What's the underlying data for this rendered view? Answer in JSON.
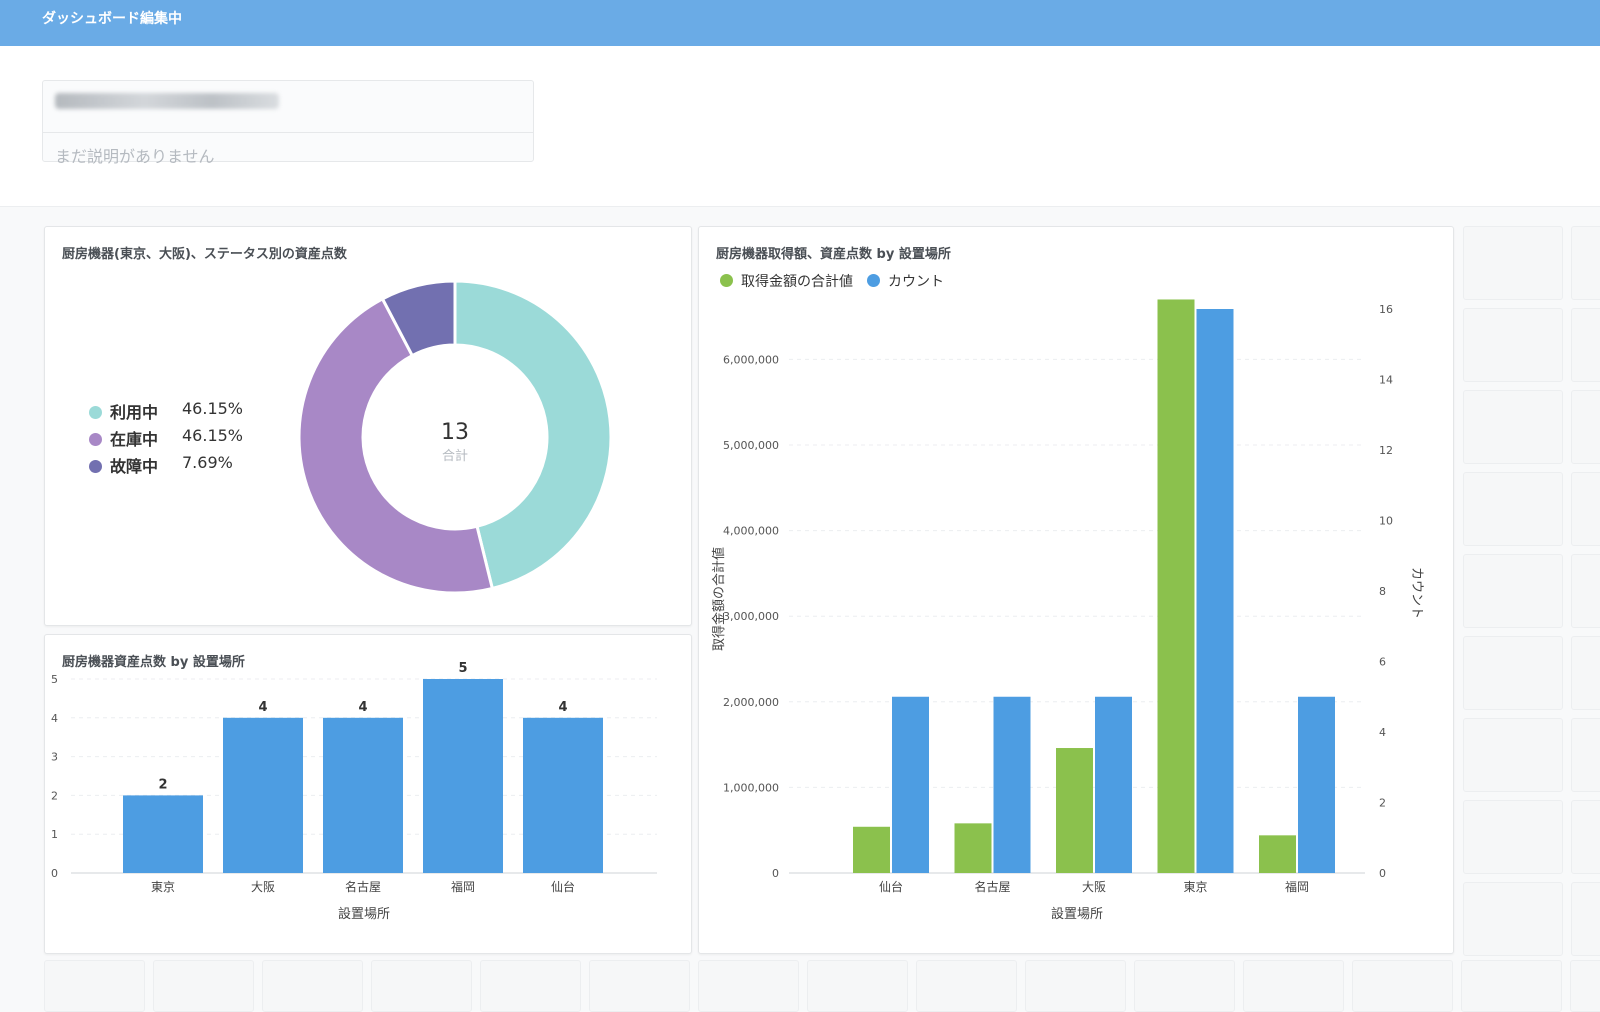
{
  "topbar": {
    "title": "ダッシュボード編集中"
  },
  "dashboard": {
    "description": "まだ説明がありません"
  },
  "colors": {
    "in_use": "#9bdad8",
    "in_stock": "#a888c6",
    "broken": "#7270b0",
    "green": "#8bc14d",
    "blue": "#4d9de2"
  },
  "donut_card": {
    "title": "厨房機器(東京、大阪)、ステータス別の資産点数",
    "total": "13",
    "total_label": "合計",
    "chart_data": {
      "type": "pie",
      "title": "厨房機器(東京、大阪)、ステータス別の資産点数",
      "slices": [
        {
          "label": "利用中",
          "value": 46.15,
          "display": "46.15%",
          "color": "#9bdad8"
        },
        {
          "label": "在庫中",
          "value": 46.15,
          "display": "46.15%",
          "color": "#a888c6"
        },
        {
          "label": "故障中",
          "value": 7.69,
          "display": "7.69%",
          "color": "#7270b0"
        }
      ]
    }
  },
  "bar_card": {
    "title": "厨房機器資産点数 by 設置場所",
    "chart_data": {
      "type": "bar",
      "title": "厨房機器資産点数 by 設置場所",
      "categories": [
        "東京",
        "大阪",
        "名古屋",
        "福岡",
        "仙台"
      ],
      "values": [
        2,
        4,
        4,
        5,
        4
      ],
      "xlabel": "設置場所",
      "ylabel": "",
      "ylim": [
        0,
        5
      ],
      "yticks": [
        0,
        1,
        2,
        3,
        4,
        5
      ],
      "grid": true,
      "color": "#4d9de2"
    }
  },
  "combo_card": {
    "title": "厨房機器取得額、資産点数 by 設置場所",
    "chart_data": {
      "type": "bar",
      "title": "厨房機器取得額、資産点数 by 設置場所",
      "categories": [
        "仙台",
        "名古屋",
        "大阪",
        "東京",
        "福岡"
      ],
      "series": [
        {
          "name": "取得金額の合計値",
          "axis": "left",
          "color": "#8bc14d",
          "values": [
            540000,
            580000,
            1460000,
            6700000,
            440000
          ]
        },
        {
          "name": "カウント",
          "axis": "right",
          "color": "#4d9de2",
          "values": [
            5,
            5,
            5,
            16,
            5
          ]
        }
      ],
      "xlabel": "設置場所",
      "ylabel": "取得金額の合計値",
      "y2label": "カウント",
      "ylim": [
        0,
        6700000
      ],
      "y2lim": [
        0,
        16
      ],
      "yticks": [
        "0",
        "1,000,000",
        "2,000,000",
        "3,000,000",
        "4,000,000",
        "5,000,000",
        "6,000,000"
      ],
      "y2ticks": [
        "0",
        "2",
        "4",
        "6",
        "8",
        "10",
        "12",
        "14",
        "16"
      ],
      "grid": true,
      "legend": "top-left"
    }
  }
}
